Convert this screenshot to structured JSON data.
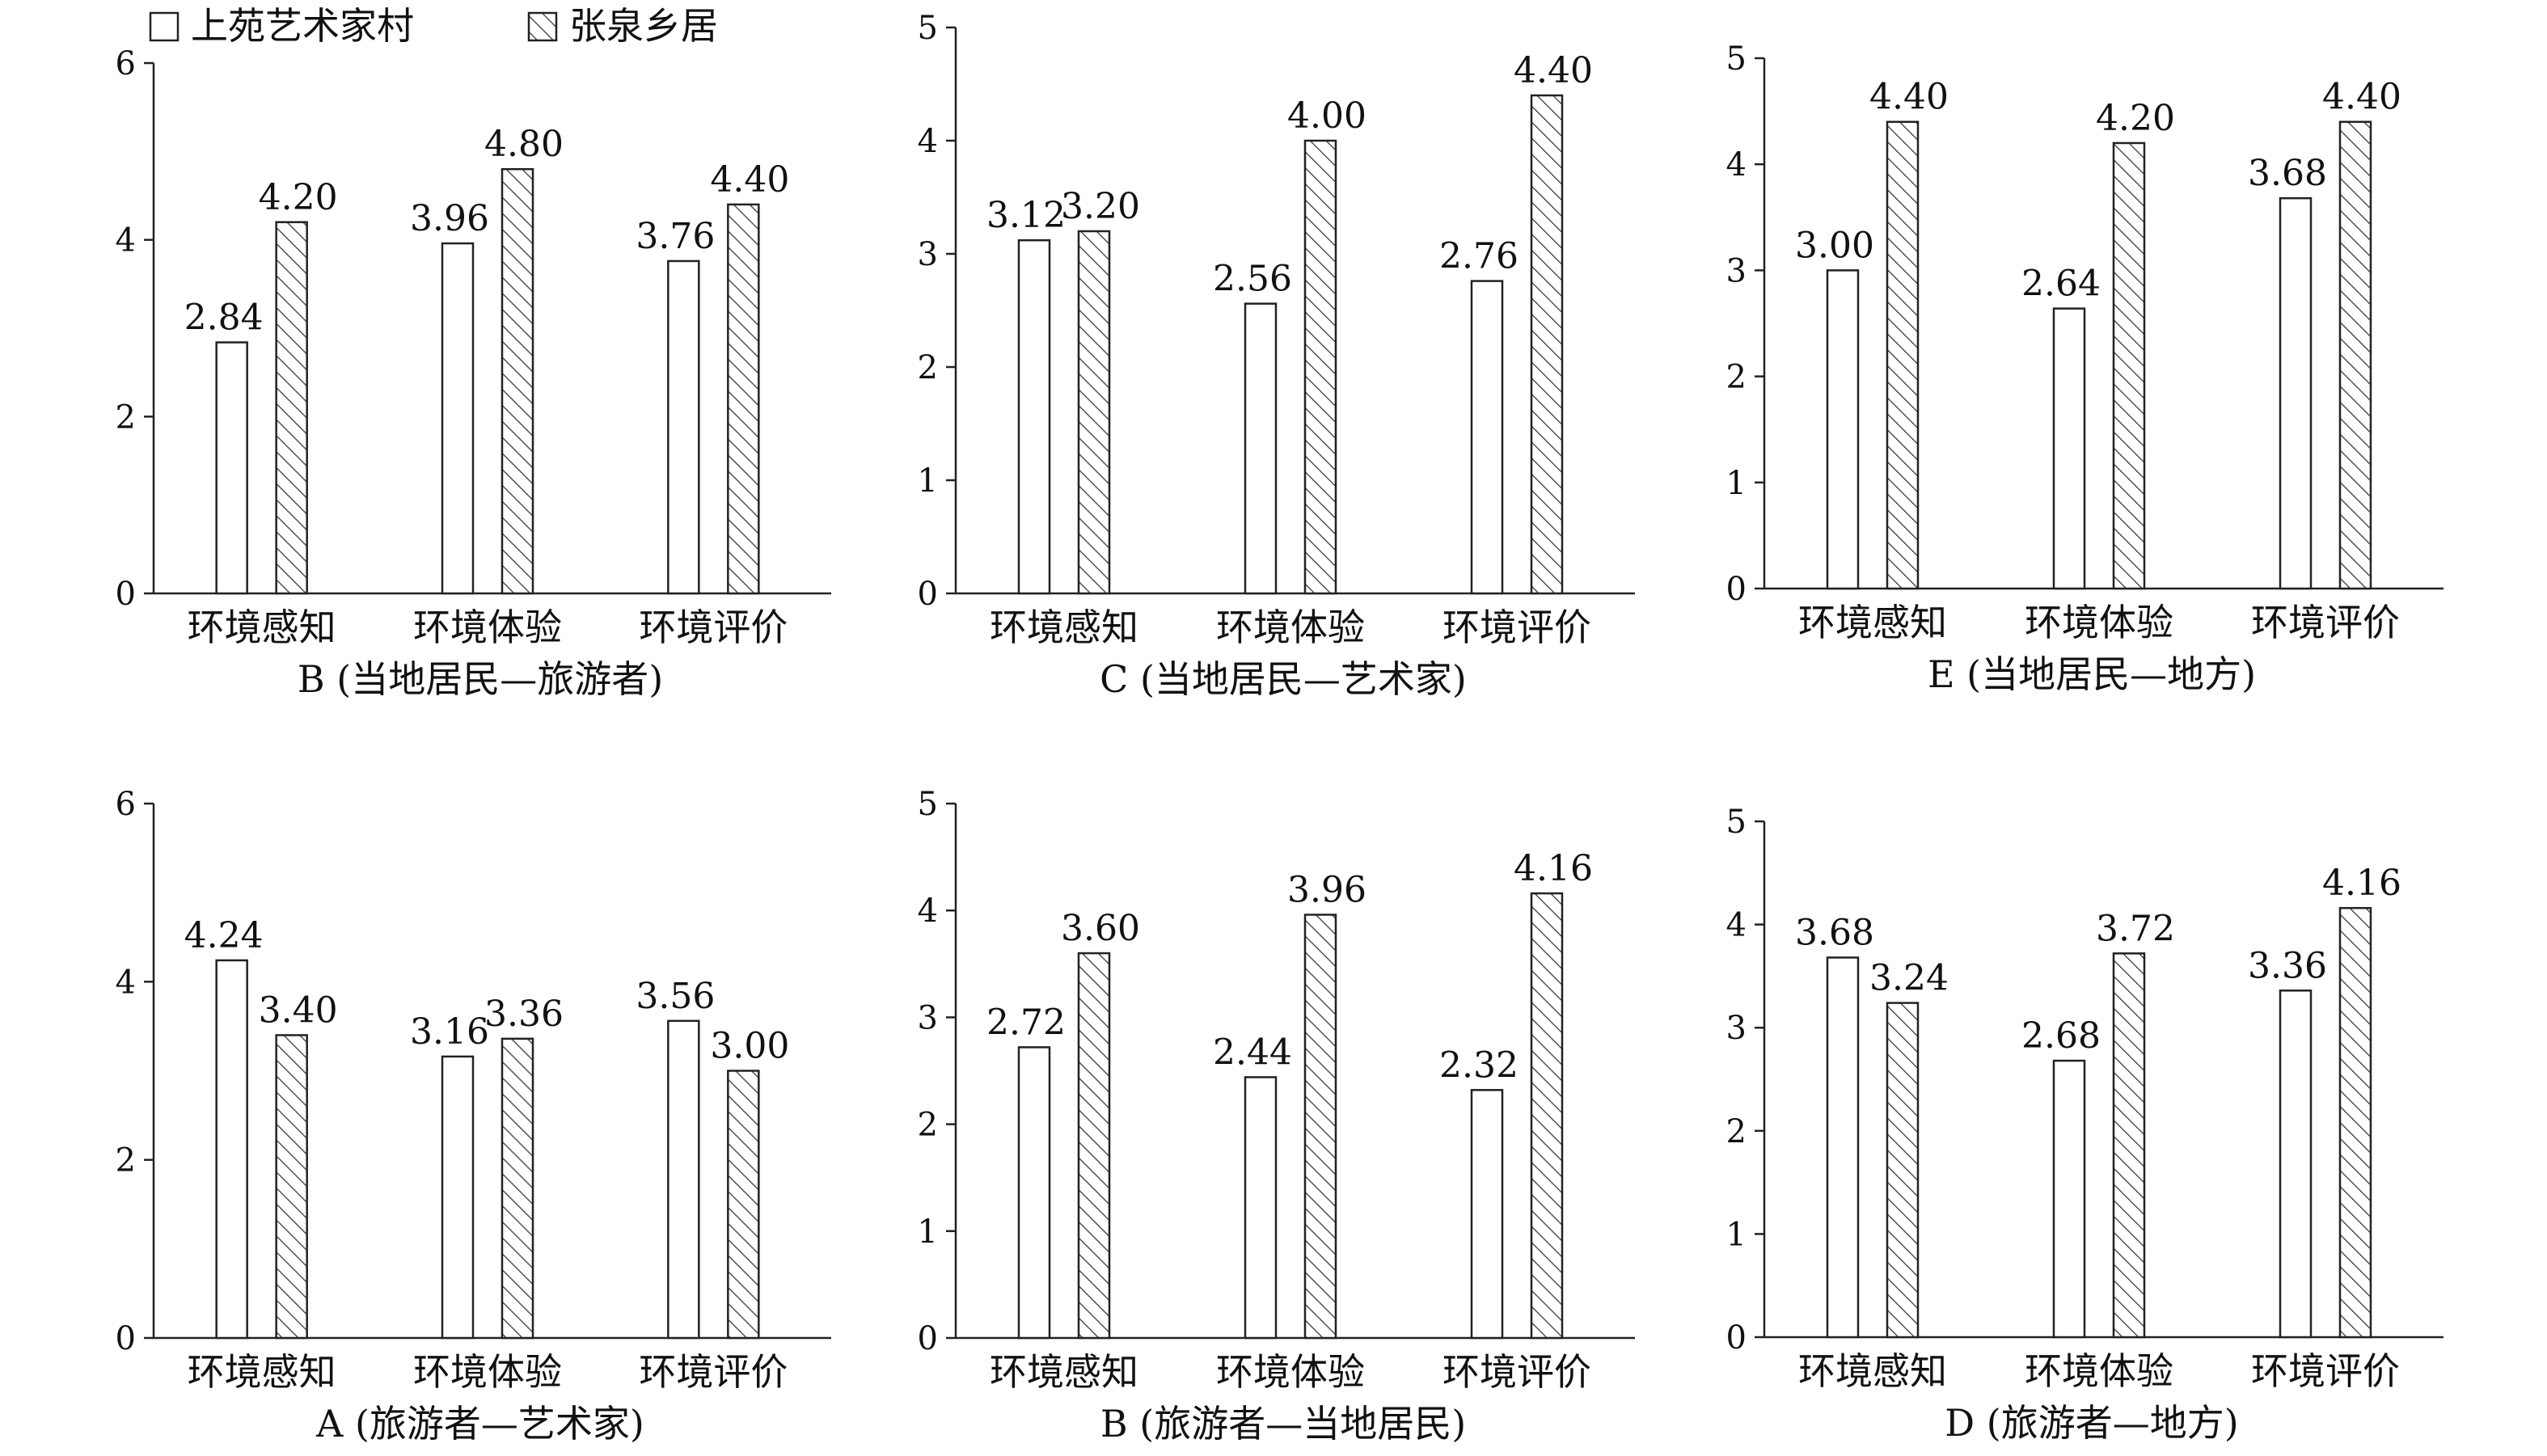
{
  "legend": {
    "series1": "上苑艺术家村",
    "series2": "张泉乡居"
  },
  "colors": {
    "bar1_fill": "#ffffff",
    "hatch_stroke": "#333333",
    "axis": "#222222"
  },
  "chart_data": [
    {
      "type": "bar",
      "title": "B (当地居民—旅游者)",
      "categories": [
        "环境感知",
        "环境体验",
        "环境评价"
      ],
      "series": [
        {
          "name": "上苑艺术家村",
          "values": [
            2.84,
            3.96,
            3.76
          ]
        },
        {
          "name": "张泉乡居",
          "values": [
            4.2,
            4.8,
            4.4
          ]
        }
      ],
      "ylim": [
        0,
        6
      ],
      "yticks": [
        0,
        2,
        4,
        6
      ],
      "grid": false,
      "legend": "top-left"
    },
    {
      "type": "bar",
      "title": "C (当地居民—艺术家)",
      "categories": [
        "环境感知",
        "环境体验",
        "环境评价"
      ],
      "series": [
        {
          "name": "上苑艺术家村",
          "values": [
            3.12,
            2.56,
            2.76
          ]
        },
        {
          "name": "张泉乡居",
          "values": [
            3.2,
            4.0,
            4.4
          ]
        }
      ],
      "ylim": [
        0,
        5
      ],
      "yticks": [
        0,
        1,
        2,
        3,
        4,
        5
      ],
      "grid": false
    },
    {
      "type": "bar",
      "title": "E (当地居民—地方)",
      "categories": [
        "环境感知",
        "环境体验",
        "环境评价"
      ],
      "series": [
        {
          "name": "上苑艺术家村",
          "values": [
            3.0,
            2.64,
            3.68
          ]
        },
        {
          "name": "张泉乡居",
          "values": [
            4.4,
            4.2,
            4.4
          ]
        }
      ],
      "ylim": [
        0,
        5
      ],
      "yticks": [
        0,
        1,
        2,
        3,
        4,
        5
      ],
      "grid": false
    },
    {
      "type": "bar",
      "title": "A (旅游者—艺术家)",
      "categories": [
        "环境感知",
        "环境体验",
        "环境评价"
      ],
      "series": [
        {
          "name": "上苑艺术家村",
          "values": [
            4.24,
            3.16,
            3.56
          ]
        },
        {
          "name": "张泉乡居",
          "values": [
            3.4,
            3.36,
            3.0
          ]
        }
      ],
      "ylim": [
        0,
        6
      ],
      "yticks": [
        0,
        2,
        4,
        6
      ],
      "grid": false
    },
    {
      "type": "bar",
      "title": "B (旅游者—当地居民)",
      "categories": [
        "环境感知",
        "环境体验",
        "环境评价"
      ],
      "series": [
        {
          "name": "上苑艺术家村",
          "values": [
            2.72,
            2.44,
            2.32
          ]
        },
        {
          "name": "张泉乡居",
          "values": [
            3.6,
            3.96,
            4.16
          ]
        }
      ],
      "ylim": [
        0,
        5
      ],
      "yticks": [
        0,
        1,
        2,
        3,
        4,
        5
      ],
      "grid": false
    },
    {
      "type": "bar",
      "title": "D (旅游者—地方)",
      "categories": [
        "环境感知",
        "环境体验",
        "环境评价"
      ],
      "series": [
        {
          "name": "上苑艺术家村",
          "values": [
            3.68,
            2.68,
            3.36
          ]
        },
        {
          "name": "张泉乡居",
          "values": [
            3.24,
            3.72,
            4.16
          ]
        }
      ],
      "ylim": [
        0,
        5
      ],
      "yticks": [
        0,
        1,
        2,
        3,
        4,
        5
      ],
      "grid": false
    }
  ]
}
